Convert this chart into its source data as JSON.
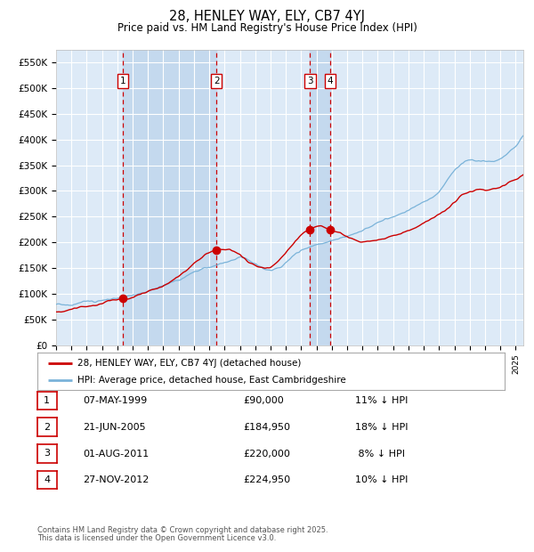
{
  "title": "28, HENLEY WAY, ELY, CB7 4YJ",
  "subtitle": "Price paid vs. HM Land Registry's House Price Index (HPI)",
  "ylim": [
    0,
    575000
  ],
  "yticks": [
    0,
    50000,
    100000,
    150000,
    200000,
    250000,
    300000,
    350000,
    400000,
    450000,
    500000,
    550000
  ],
  "ytick_labels": [
    "£0",
    "£50K",
    "£100K",
    "£150K",
    "£200K",
    "£250K",
    "£300K",
    "£350K",
    "£400K",
    "£450K",
    "£500K",
    "£550K"
  ],
  "hpi_color": "#7ab3d9",
  "price_color": "#cc0000",
  "background_color": "#ffffff",
  "plot_bg_color": "#ddeaf7",
  "grid_color": "#ffffff",
  "shaded_color": "#c4d9ee",
  "vline_color": "#cc0000",
  "transactions": [
    {
      "label": "1",
      "date": 1999.37,
      "price": 90000
    },
    {
      "label": "2",
      "date": 2005.47,
      "price": 184950
    },
    {
      "label": "3",
      "date": 2011.58,
      "price": 220000
    },
    {
      "label": "4",
      "date": 2012.9,
      "price": 224950
    }
  ],
  "legend_line1": "28, HENLEY WAY, ELY, CB7 4YJ (detached house)",
  "legend_line2": "HPI: Average price, detached house, East Cambridgeshire",
  "legend_color1": "#cc0000",
  "legend_color2": "#7ab3d9",
  "table_rows": [
    {
      "num": "1",
      "date": "07-MAY-1999",
      "price": "£90,000",
      "hpi": "11% ↓ HPI"
    },
    {
      "num": "2",
      "date": "21-JUN-2005",
      "price": "£184,950",
      "hpi": "18% ↓ HPI"
    },
    {
      "num": "3",
      "date": "01-AUG-2011",
      "price": "£220,000",
      "hpi": " 8% ↓ HPI"
    },
    {
      "num": "4",
      "date": "27-NOV-2012",
      "price": "£224,950",
      "hpi": "10% ↓ HPI"
    }
  ],
  "footer_line1": "Contains HM Land Registry data © Crown copyright and database right 2025.",
  "footer_line2": "This data is licensed under the Open Government Licence v3.0."
}
